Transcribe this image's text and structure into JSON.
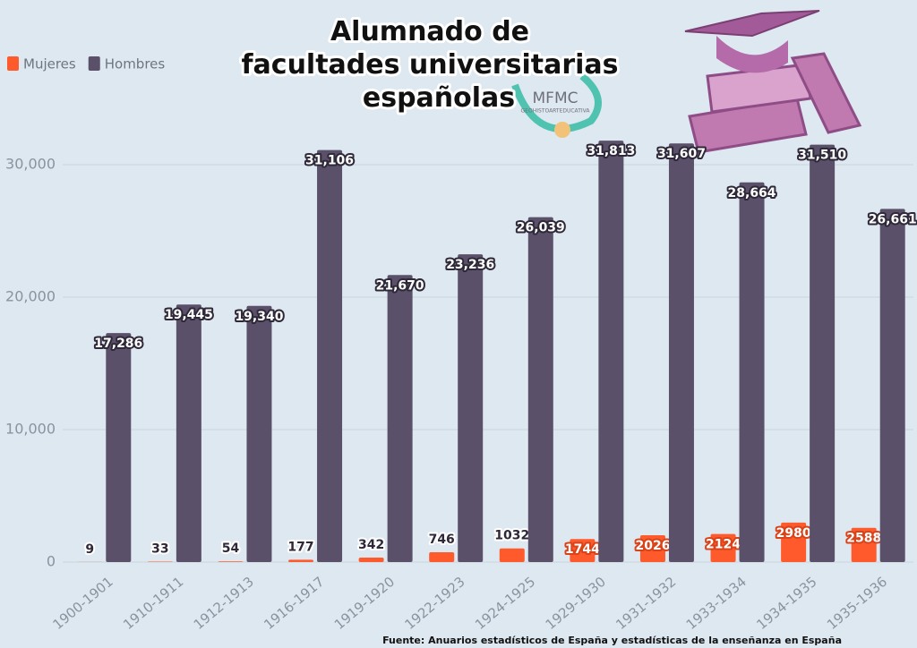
{
  "chart_data": {
    "type": "bar",
    "title": "Alumnado de facultades universitarias españolas",
    "logo_texts": [
      "MFMC",
      "GEOHISTOARTEDUCATIVA"
    ],
    "source": "Fuente: Anuarios estadísticos de España y estadísticas de la enseñanza en España",
    "categories": [
      "1900-1901",
      "1910-1911",
      "1912-1913",
      "1916-1917",
      "1919-1920",
      "1922-1923",
      "1924-1925",
      "1929-1930",
      "1931-1932",
      "1933-1934",
      "1934-1935",
      "1935-1936"
    ],
    "series": [
      {
        "name": "Mujeres",
        "color": "#fe5a2b",
        "values": [
          9,
          33,
          54,
          177,
          342,
          746,
          1032,
          1744,
          2026,
          2124,
          2980,
          2588
        ]
      },
      {
        "name": "Hombres",
        "color": "#5b5069",
        "values": [
          17286,
          19445,
          19340,
          31106,
          21670,
          23236,
          26039,
          31813,
          31607,
          28664,
          31510,
          26661
        ],
        "value_labels": [
          "17,286",
          "19,445",
          "19,340",
          "31,106",
          "21,670",
          "23,236",
          "26,039",
          "31,813",
          "31,607",
          "28,664",
          "31,510",
          "26,661"
        ]
      }
    ],
    "ylim": [
      0,
      35000
    ],
    "yticks": [
      0,
      {
        "value": 10000,
        "label": "10,000"
      },
      {
        "value": 20000,
        "label": "20,000"
      },
      {
        "value": 30000,
        "label": "30,000"
      }
    ],
    "grid": true,
    "legend": "top-left"
  }
}
